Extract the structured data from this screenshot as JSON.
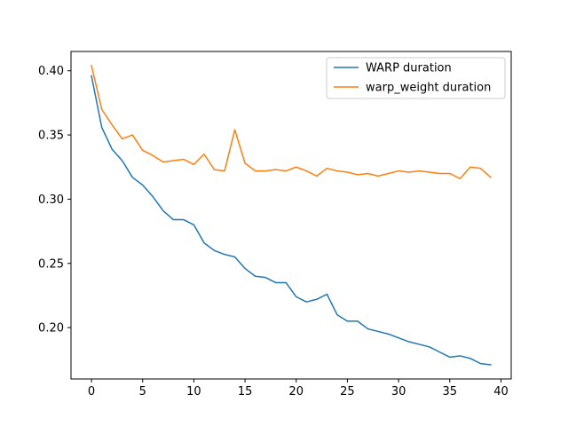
{
  "chart_data": {
    "type": "line",
    "title": "",
    "xlabel": "",
    "ylabel": "",
    "xlim": [
      -2,
      41
    ],
    "ylim": [
      0.16,
      0.415
    ],
    "xticks": [
      0,
      5,
      10,
      15,
      20,
      25,
      30,
      35,
      40
    ],
    "yticks": [
      0.2,
      0.25,
      0.3,
      0.35,
      0.4
    ],
    "xtick_labels": [
      "0",
      "5",
      "10",
      "15",
      "20",
      "25",
      "30",
      "35",
      "40"
    ],
    "ytick_labels": [
      "0.20",
      "0.25",
      "0.30",
      "0.35",
      "0.40"
    ],
    "grid": false,
    "legend_position": "upper right",
    "x": [
      0,
      1,
      2,
      3,
      4,
      5,
      6,
      7,
      8,
      9,
      10,
      11,
      12,
      13,
      14,
      15,
      16,
      17,
      18,
      19,
      20,
      21,
      22,
      23,
      24,
      25,
      26,
      27,
      28,
      29,
      30,
      31,
      32,
      33,
      34,
      35,
      36,
      37,
      38,
      39
    ],
    "series": [
      {
        "name": "WARP duration",
        "color": "#1f77b4",
        "values": [
          0.396,
          0.356,
          0.339,
          0.33,
          0.317,
          0.311,
          0.302,
          0.291,
          0.284,
          0.284,
          0.28,
          0.266,
          0.26,
          0.257,
          0.255,
          0.246,
          0.24,
          0.239,
          0.235,
          0.235,
          0.224,
          0.22,
          0.222,
          0.226,
          0.21,
          0.205,
          0.205,
          0.199,
          0.197,
          0.195,
          0.192,
          0.189,
          0.187,
          0.185,
          0.181,
          0.177,
          0.178,
          0.176,
          0.172,
          0.171
        ]
      },
      {
        "name": "warp_weight duration",
        "color": "#ff7f0e",
        "values": [
          0.404,
          0.37,
          0.358,
          0.347,
          0.35,
          0.338,
          0.334,
          0.329,
          0.33,
          0.331,
          0.327,
          0.335,
          0.323,
          0.322,
          0.354,
          0.328,
          0.322,
          0.322,
          0.323,
          0.322,
          0.325,
          0.322,
          0.318,
          0.324,
          0.322,
          0.321,
          0.319,
          0.32,
          0.318,
          0.32,
          0.322,
          0.321,
          0.322,
          0.321,
          0.32,
          0.32,
          0.316,
          0.325,
          0.324,
          0.317
        ]
      }
    ]
  }
}
